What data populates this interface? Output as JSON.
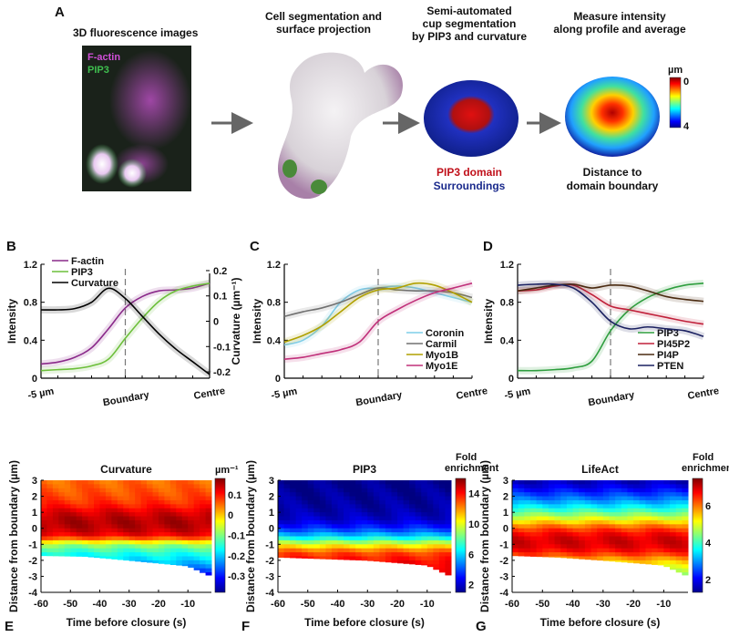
{
  "panel_a": {
    "letter": "A",
    "step1": {
      "title": "3D fluorescence images",
      "legend": [
        "F-actin",
        "PIP3"
      ],
      "legend_colors": [
        "#d04fd8",
        "#3fbf4f"
      ]
    },
    "step2": {
      "title_lines": [
        "Cell segmentation and",
        "surface projection"
      ]
    },
    "step3": {
      "title_lines": [
        "Semi-automated",
        "cup segmentation",
        "by PIP3 and curvature"
      ],
      "label_domain": "PIP3 domain",
      "label_surround": "Surroundings",
      "domain_color": "#c0101a",
      "surround_color": "#1a2a8c"
    },
    "step4": {
      "title_lines": [
        "Measure intensity",
        "along profile and average"
      ],
      "caption_lines": [
        "Distance to",
        "domain boundary"
      ],
      "colorbar_unit": "µm",
      "colorbar_ticks": [
        "0",
        "4"
      ]
    }
  },
  "chart_data": [
    {
      "letter": "B",
      "type": "line",
      "x_tick_labels": [
        "-5 µm",
        "Boundary",
        "Centre"
      ],
      "x": [
        0,
        0.1,
        0.2,
        0.3,
        0.4,
        0.5,
        0.6,
        0.7,
        0.8,
        0.9,
        1.0
      ],
      "boundary_x": 0.5,
      "ylabel": "Intensity",
      "ylim": [
        0,
        1.2
      ],
      "yticks": [
        "0",
        "0.4",
        "0.8",
        "1.2"
      ],
      "y2label": "Curvature (µm⁻¹)",
      "y2lim": [
        -0.225,
        0.225
      ],
      "y2ticks": [
        "-0.2",
        "-0.1",
        "0",
        "0.1",
        "0.2"
      ],
      "legend_position": "top-left",
      "series": [
        {
          "name": "F-actin",
          "color": "#8a2a8a",
          "values": [
            0.15,
            0.17,
            0.22,
            0.32,
            0.52,
            0.74,
            0.86,
            0.92,
            0.93,
            0.95,
            1.0
          ]
        },
        {
          "name": "PIP3",
          "color": "#6cbf3a",
          "values": [
            0.08,
            0.09,
            0.1,
            0.13,
            0.2,
            0.42,
            0.63,
            0.81,
            0.92,
            0.97,
            1.0
          ]
        },
        {
          "name": "Curvature",
          "color": "#000000",
          "axis": "right",
          "values": [
            0.045,
            0.045,
            0.05,
            0.075,
            0.13,
            0.09,
            0.02,
            -0.05,
            -0.11,
            -0.16,
            -0.21
          ]
        }
      ]
    },
    {
      "letter": "C",
      "type": "line",
      "x_tick_labels": [
        "-5 µm",
        "Boundary",
        "Centre"
      ],
      "x": [
        0,
        0.1,
        0.2,
        0.3,
        0.4,
        0.5,
        0.6,
        0.7,
        0.8,
        0.9,
        1.0
      ],
      "boundary_x": 0.5,
      "ylabel": "Intensity",
      "ylim": [
        0,
        1.2
      ],
      "yticks": [
        "0",
        "0.4",
        "0.8",
        "1.2"
      ],
      "legend_position": "bottom-right",
      "series": [
        {
          "name": "Coronin",
          "color": "#7fcde8",
          "values": [
            0.35,
            0.4,
            0.55,
            0.8,
            0.93,
            0.95,
            0.97,
            0.95,
            0.9,
            0.85,
            0.8
          ]
        },
        {
          "name": "Carmil",
          "color": "#707070",
          "values": [
            0.65,
            0.7,
            0.74,
            0.8,
            0.88,
            0.95,
            0.93,
            0.92,
            0.92,
            0.9,
            0.85
          ]
        },
        {
          "name": "Myo1B",
          "color": "#b0a000",
          "values": [
            0.38,
            0.45,
            0.55,
            0.7,
            0.85,
            0.93,
            0.95,
            1.0,
            0.98,
            0.9,
            0.8
          ]
        },
        {
          "name": "Myo1E",
          "color": "#c0307a",
          "values": [
            0.2,
            0.22,
            0.26,
            0.3,
            0.38,
            0.6,
            0.72,
            0.82,
            0.9,
            0.95,
            1.0
          ]
        }
      ]
    },
    {
      "letter": "D",
      "type": "line",
      "x_tick_labels": [
        "-5 µm",
        "Boundary",
        "Centre"
      ],
      "x": [
        0,
        0.1,
        0.2,
        0.3,
        0.4,
        0.5,
        0.6,
        0.7,
        0.8,
        0.9,
        1.0
      ],
      "boundary_x": 0.5,
      "ylabel": "Intensity",
      "ylim": [
        0,
        1.2
      ],
      "yticks": [
        "0",
        "0.4",
        "0.8",
        "1.2"
      ],
      "legend_position": "bottom-right",
      "series": [
        {
          "name": "PIP3",
          "color": "#2e9e3e",
          "values": [
            0.08,
            0.08,
            0.09,
            0.11,
            0.18,
            0.5,
            0.72,
            0.85,
            0.93,
            0.98,
            1.0
          ]
        },
        {
          "name": "PI45P2",
          "color": "#c0203a",
          "values": [
            0.92,
            0.93,
            0.97,
            0.98,
            0.88,
            0.76,
            0.72,
            0.68,
            0.64,
            0.6,
            0.57
          ]
        },
        {
          "name": "PI4P",
          "color": "#4a2a10",
          "values": [
            0.92,
            0.95,
            0.98,
            0.99,
            0.95,
            0.98,
            0.97,
            0.92,
            0.86,
            0.83,
            0.81
          ]
        },
        {
          "name": "PTEN",
          "color": "#1a2060",
          "values": [
            0.98,
            0.99,
            0.99,
            0.95,
            0.8,
            0.6,
            0.52,
            0.54,
            0.52,
            0.5,
            0.44
          ]
        }
      ]
    },
    {
      "letter": "E",
      "type": "heatmap",
      "title": "Curvature",
      "xlabel": "Time before closure (s)",
      "ylabel": "Distance from boundary (µm)",
      "xlim": [
        -60,
        -2
      ],
      "ylim": [
        -4,
        3
      ],
      "xticks": [
        "-60",
        "-50",
        "-40",
        "-30",
        "-20",
        "-10"
      ],
      "yticks": [
        "3",
        "2",
        "1",
        "0",
        "-1",
        "-2",
        "-3",
        "-4"
      ],
      "colorbar_label": "µm⁻¹",
      "clim": [
        -0.38,
        0.18
      ],
      "colorbar_ticks": [
        "0.1",
        "0",
        "-0.1",
        "-0.2",
        "-0.3"
      ],
      "profile_distance": [
        3,
        2.5,
        2,
        1.5,
        1,
        0.5,
        0,
        -0.5,
        -1,
        -1.5,
        -2,
        -2.5,
        -3
      ],
      "profile_values": [
        0.05,
        0.06,
        0.07,
        0.09,
        0.13,
        0.155,
        0.15,
        0.11,
        -0.08,
        -0.15,
        -0.19,
        -0.24,
        -0.32
      ],
      "lower_extent_time": [
        -60,
        -45,
        -30,
        -10,
        -2
      ],
      "lower_extent_distance": [
        -1.7,
        -1.75,
        -2.0,
        -2.35,
        -3.0
      ]
    },
    {
      "letter": "F",
      "type": "heatmap",
      "title": "PIP3",
      "xlabel": "Time before closure (s)",
      "ylabel": "Distance from boundary (µm)",
      "xlim": [
        -60,
        -2
      ],
      "ylim": [
        -4,
        3
      ],
      "xticks": [
        "-60",
        "-50",
        "-40",
        "-30",
        "-20",
        "-10"
      ],
      "yticks": [
        "3",
        "2",
        "1",
        "0",
        "-1",
        "-2",
        "-3",
        "-4"
      ],
      "colorbar_label_lines": [
        "Fold",
        "enrichment"
      ],
      "clim": [
        1,
        16
      ],
      "colorbar_ticks": [
        "14",
        "10",
        "6",
        "2"
      ],
      "profile_distance": [
        3,
        2.5,
        2,
        1.5,
        1,
        0.5,
        0,
        -0.5,
        -1,
        -1.5,
        -2,
        -2.5,
        -3
      ],
      "profile_values": [
        1.2,
        1.3,
        1.4,
        1.5,
        1.7,
        2.2,
        3.5,
        6,
        10,
        13,
        14,
        14.5,
        15
      ],
      "lower_extent_time": [
        -60,
        -45,
        -30,
        -10,
        -2
      ],
      "lower_extent_distance": [
        -1.8,
        -1.9,
        -2.0,
        -2.3,
        -3.0
      ]
    },
    {
      "letter": "G",
      "type": "heatmap",
      "title": "LifeAct",
      "xlabel": "Time before closure (s)",
      "ylabel": "Distance from boundary (µm)",
      "xlim": [
        -60,
        -2
      ],
      "ylim": [
        -4,
        3
      ],
      "xticks": [
        "-60",
        "-50",
        "-40",
        "-30",
        "-20",
        "-10"
      ],
      "yticks": [
        "3",
        "2",
        "1",
        "0",
        "-1",
        "-2",
        "-3",
        "-4"
      ],
      "colorbar_label_lines": [
        "Fold",
        "enrichment"
      ],
      "clim": [
        1.3,
        7.5
      ],
      "colorbar_ticks": [
        "6",
        "4",
        "2"
      ],
      "profile_distance": [
        3,
        2.5,
        2,
        1.5,
        1,
        0.5,
        0,
        -0.5,
        -1,
        -1.5,
        -2,
        -2.5,
        -3
      ],
      "profile_values": [
        1.6,
        2.0,
        2.6,
        3.3,
        4.2,
        5.2,
        6.3,
        6.9,
        7.0,
        6.6,
        5.6,
        5.0,
        4.6
      ],
      "lower_extent_time": [
        -60,
        -45,
        -30,
        -10,
        -2
      ],
      "lower_extent_distance": [
        -1.7,
        -1.8,
        -2.0,
        -2.3,
        -3.0
      ]
    }
  ]
}
